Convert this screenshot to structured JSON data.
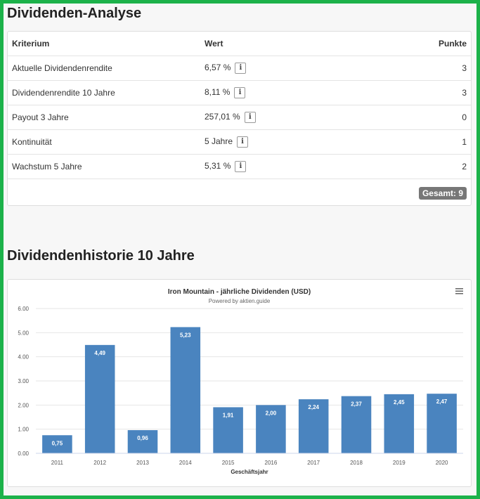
{
  "analysis": {
    "heading": "Dividenden-Analyse",
    "columns": [
      "Kriterium",
      "Wert",
      "Punkte"
    ],
    "rows": [
      {
        "criterion": "Aktuelle Dividendenrendite",
        "value": "6,57 %",
        "points": "3"
      },
      {
        "criterion": "Dividendenrendite 10 Jahre",
        "value": "8,11 %",
        "points": "3"
      },
      {
        "criterion": "Payout 3 Jahre",
        "value": "257,01 %",
        "points": "0"
      },
      {
        "criterion": "Kontinuität",
        "value": "5 Jahre",
        "points": "1"
      },
      {
        "criterion": "Wachstum 5 Jahre",
        "value": "5,31 %",
        "points": "2"
      }
    ],
    "info_icon_glyph": "i",
    "total_label": "Gesamt: 9"
  },
  "history": {
    "heading": "Dividendenhistorie 10 Jahre"
  },
  "chart_data": {
    "type": "bar",
    "title": "Iron Mountain - jährliche Dividenden (USD)",
    "subtitle": "Powered by aktien.guide",
    "xlabel": "Geschäftsjahr",
    "ylabel": "",
    "categories": [
      "2011",
      "2012",
      "2013",
      "2014",
      "2015",
      "2016",
      "2017",
      "2018",
      "2019",
      "2020"
    ],
    "values": [
      0.75,
      4.49,
      0.96,
      5.23,
      1.91,
      2.0,
      2.24,
      2.37,
      2.45,
      2.47
    ],
    "data_labels": [
      "0,75",
      "4,49",
      "0,96",
      "5,23",
      "1,91",
      "2,00",
      "2,24",
      "2,37",
      "2,45",
      "2,47"
    ],
    "yticks": [
      "0.00",
      "1.00",
      "2.00",
      "3.00",
      "4.00",
      "5.00",
      "6.00"
    ],
    "ylim": [
      0,
      6
    ],
    "grid": true,
    "legend": "none",
    "bar_color": "#4a84bf",
    "menu_icon": "hamburger-menu-icon"
  }
}
